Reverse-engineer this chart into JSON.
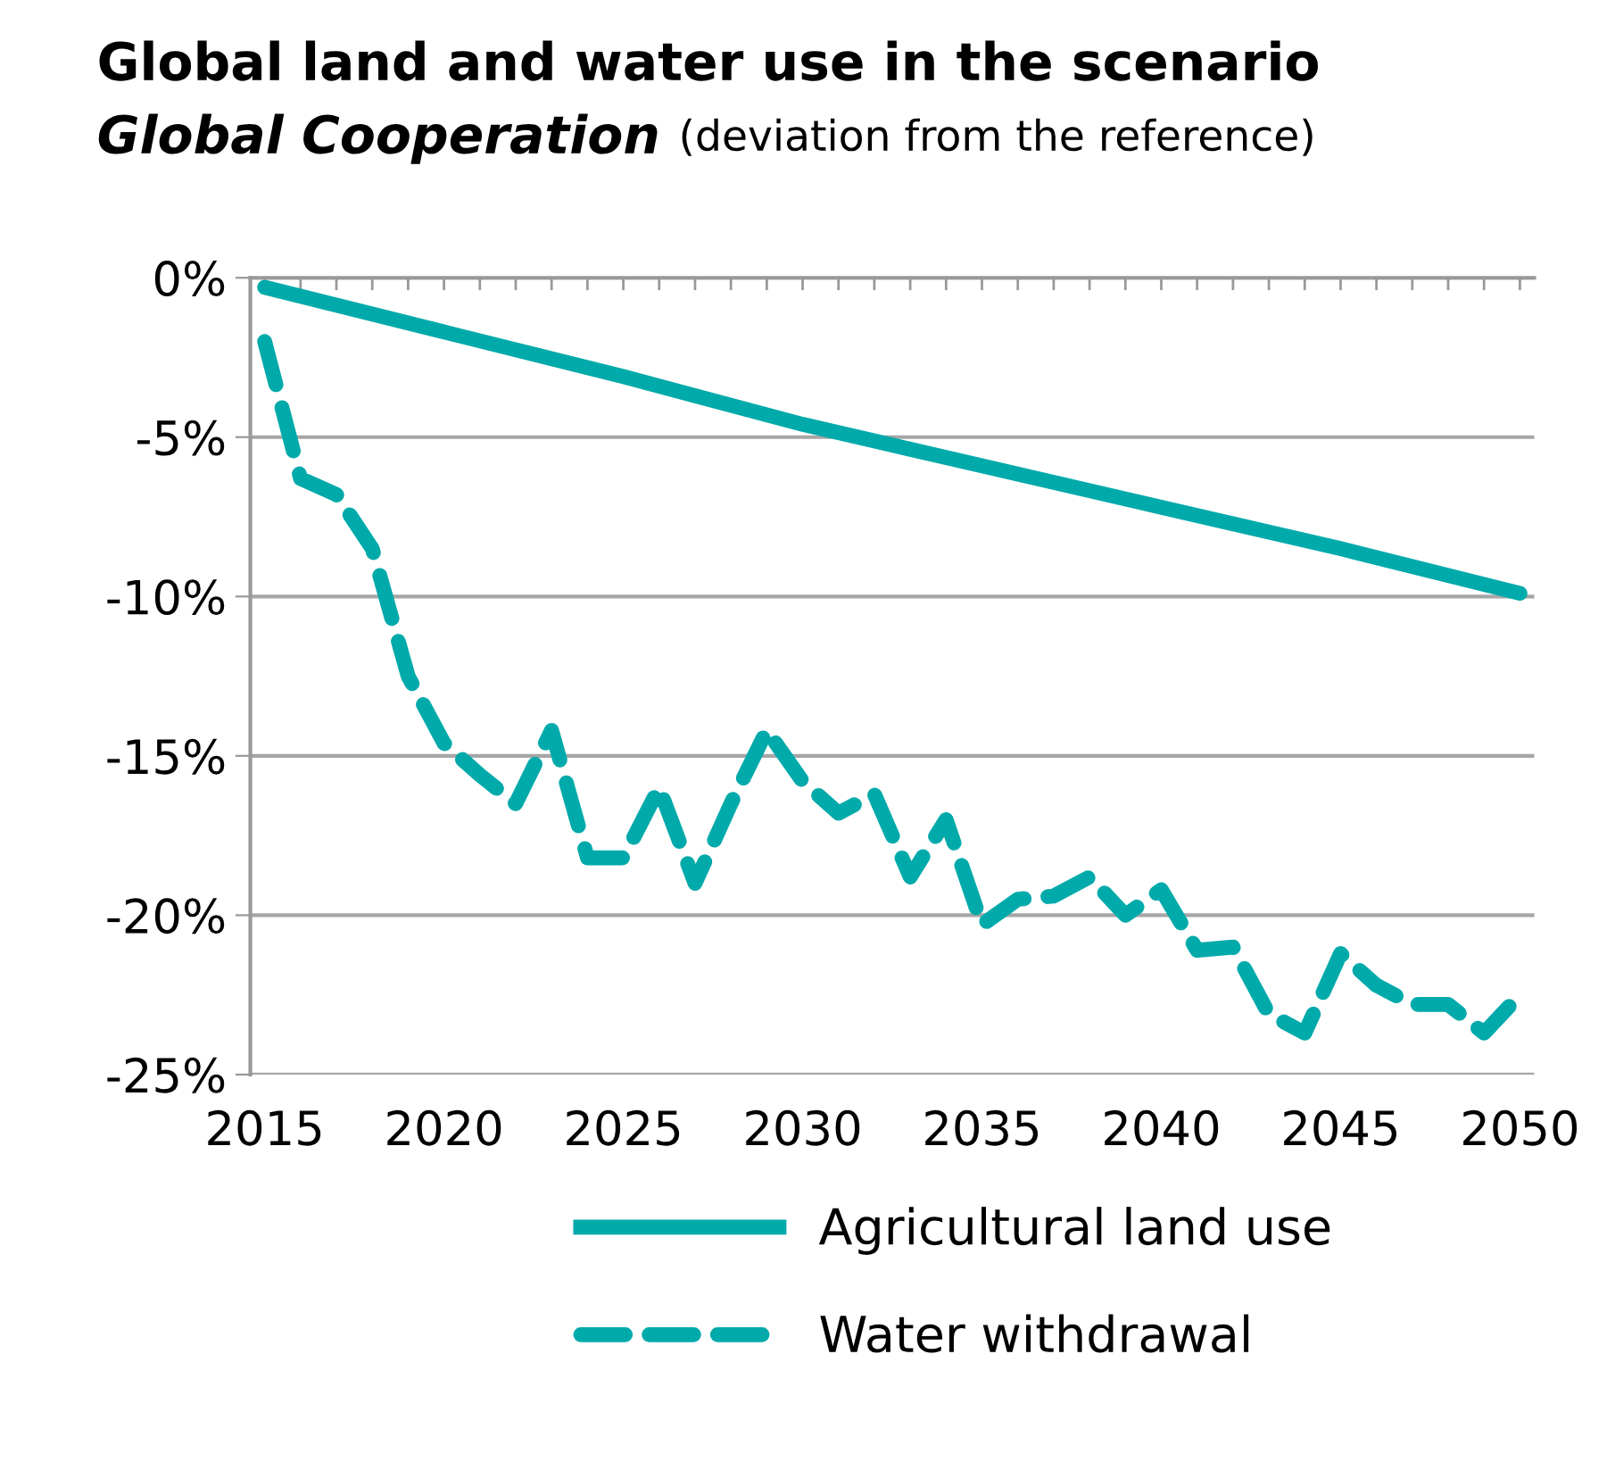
{
  "chart_data": {
    "type": "line",
    "title": "Global land and water use in the scenario\nGlobal Cooperation",
    "subtitle": "(deviation from the reference)",
    "xlim": [
      2014.6,
      2050.4
    ],
    "xticks": [
      2015,
      2020,
      2025,
      2030,
      2035,
      2040,
      2045,
      2050
    ],
    "ylim": [
      -25,
      0
    ],
    "yticks": [
      {
        "value": 0,
        "label": "0%"
      },
      {
        "value": -5,
        "label": "-5%"
      },
      {
        "value": -10,
        "label": "-10%"
      },
      {
        "value": -15,
        "label": "-15%"
      },
      {
        "value": -20,
        "label": "-20%"
      },
      {
        "value": -25,
        "label": "-25%"
      }
    ],
    "grid": "y",
    "legend": "bottom",
    "series": [
      {
        "name": "Agricultural land use",
        "color": "#00aaaa",
        "line_style": "solid",
        "x": [
          2015,
          2020,
          2025,
          2030,
          2035,
          2040,
          2045,
          2050
        ],
        "values": [
          -0.3,
          -1.7,
          -3.1,
          -4.6,
          -5.9,
          -7.2,
          -8.5,
          -9.9
        ]
      },
      {
        "name": "Water withdrawal",
        "color": "#00aaaa",
        "line_style": "dashed",
        "x": [
          2015,
          2016,
          2017,
          2018,
          2019,
          2020,
          2021,
          2022,
          2023,
          2024,
          2025,
          2026,
          2027,
          2028,
          2029,
          2030,
          2031,
          2032,
          2033,
          2034,
          2035,
          2036,
          2037,
          2038,
          2039,
          2040,
          2041,
          2042,
          2043,
          2044,
          2045,
          2046,
          2047,
          2048,
          2049,
          2050
        ],
        "values": [
          -2,
          -6.3,
          -6.8,
          -8.5,
          -12.5,
          -14.6,
          -15.6,
          -16.5,
          -14.2,
          -18.2,
          -18.2,
          -16.0,
          -19.0,
          -16.5,
          -14.2,
          -15.8,
          -16.8,
          -16.2,
          -18.8,
          -17.0,
          -20.3,
          -19.5,
          -19.4,
          -18.8,
          -20.0,
          -19.2,
          -21.1,
          -21.0,
          -23.1,
          -23.7,
          -21.2,
          -22.2,
          -22.8,
          -22.8,
          -23.7,
          -22.5
        ]
      }
    ]
  }
}
